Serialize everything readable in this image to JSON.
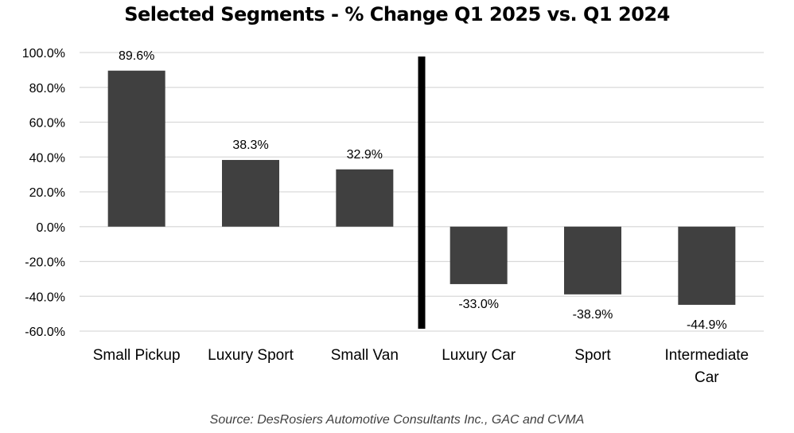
{
  "chart_data": {
    "type": "bar",
    "title": "Selected Segments - % Change Q1 2025 vs. Q1 2024",
    "categories": [
      "Small Pickup",
      "Luxury Sport",
      "Small Van",
      "Luxury Car",
      "Sport",
      "Intermediate Car"
    ],
    "values": [
      89.6,
      38.3,
      32.9,
      -33.0,
      -38.9,
      -44.9
    ],
    "data_labels": [
      "89.6%",
      "38.3%",
      "32.9%",
      "-33.0%",
      "-38.9%",
      "-44.9%"
    ],
    "ylim": [
      -60,
      100
    ],
    "yticks": [
      100,
      80,
      60,
      40,
      20,
      0,
      -20,
      -40,
      -60
    ],
    "ytick_labels": [
      "100.0%",
      "80.0%",
      "60.0%",
      "40.0%",
      "20.0%",
      "0.0%",
      "-20.0%",
      "-40.0%",
      "-60.0%"
    ],
    "xlabel": "",
    "ylabel": "",
    "grid": true,
    "divider_after_category": 2,
    "bar_color": "#404040",
    "grid_color": "#d9d9d9",
    "divider_color": "#000000"
  },
  "source": "Source: DesRosiers Automotive Consultants Inc., GAC and CVMA"
}
